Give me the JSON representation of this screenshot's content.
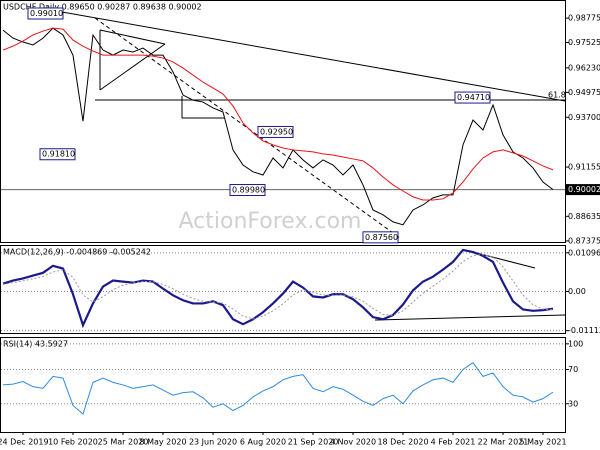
{
  "chart_data": [
    {
      "type": "line",
      "title": "USDCHF,Daily  0.89650 0.90287 0.89638 0.90002",
      "watermark": "ActionForex.com",
      "ylim": [
        0.8727,
        0.997
      ],
      "yticks": [
        0.98775,
        0.97525,
        {
          "value": 0.9623,
          "label": "0.96230"
        },
        0.94975,
        {
          "value": 0.937,
          "label": "0.93700"
        },
        0.91155,
        0.88635,
        0.87375
      ],
      "grid": false,
      "series": [
        {
          "color": "#000000",
          "values": [
            0.9816,
            0.9775,
            0.9755,
            0.974,
            0.9775,
            0.9826,
            0.9791,
            0.9688,
            0.935,
            0.9791,
            0.9714,
            0.9688,
            0.9714,
            0.9704,
            0.9724,
            0.9688,
            0.9688,
            0.9602,
            0.9484,
            0.9458,
            0.9448,
            0.9418,
            0.9397,
            0.9203,
            0.9126,
            0.9091,
            0.9075,
            0.9162,
            0.9111,
            0.9203,
            0.9152,
            0.9111,
            0.9152,
            0.9126,
            0.9075,
            0.9126,
            0.9024,
            0.8896,
            0.8871,
            0.8835,
            0.882,
            0.8896,
            0.8922,
            0.8958,
            0.8973,
            0.8973,
            0.9229,
            0.9356,
            0.9305,
            0.9433,
            0.928,
            0.9193,
            0.9162,
            0.9111,
            0.9039,
            0.90002
          ]
        },
        {
          "color": "#e8141a",
          "values": [
            0.9714,
            0.9734,
            0.976,
            0.9791,
            0.9811,
            0.9826,
            0.9821,
            0.9765,
            0.9734,
            0.9709,
            0.9688,
            0.9688,
            0.9688,
            0.9688,
            0.9688,
            0.9683,
            0.9673,
            0.9653,
            0.9622,
            0.9586,
            0.955,
            0.952,
            0.9489,
            0.9428,
            0.9341,
            0.929,
            0.9249,
            0.9229,
            0.9213,
            0.9203,
            0.9198,
            0.9193,
            0.9183,
            0.9177,
            0.9167,
            0.9157,
            0.9147,
            0.9111,
            0.9065,
            0.9024,
            0.8993,
            0.8963,
            0.8947,
            0.8947,
            0.8953,
            0.8983,
            0.9039,
            0.9106,
            0.9162,
            0.9193,
            0.9203,
            0.9188,
            0.9172,
            0.9147,
            0.9121,
            0.9101
          ]
        }
      ],
      "last_price": 0.90002,
      "fib_level": 61.8,
      "annotations": [
        {
          "value": 0.9901,
          "label": "0.99010"
        },
        {
          "value": 0.9181,
          "label": "0.91810"
        },
        {
          "value": 0.9295,
          "label": "0.92950"
        },
        {
          "value": 0.8998,
          "label": "0.89980"
        },
        {
          "value": 0.9471,
          "label": "0.94710"
        },
        {
          "value": 0.8756,
          "label": "0.87560"
        }
      ]
    },
    {
      "type": "line",
      "title": "MACD(12,26,9) -0.004869 -0.005242",
      "ylim": [
        -0.0118,
        0.0132
      ],
      "yticks": [
        0.010967,
        {
          "value": 0,
          "label": "0.00"
        },
        -0.011127
      ],
      "grid": true,
      "series": [
        {
          "color": "#1a1a8c",
          "values": [
            0.0022,
            0.0031,
            0.0037,
            0.0045,
            0.0053,
            0.0073,
            0.0065,
            -0.0008,
            -0.0096,
            -0.0034,
            0.0014,
            0.0031,
            0.0028,
            0.0025,
            0.0031,
            0.0028,
            0.0008,
            -0.0011,
            -0.0025,
            -0.0034,
            -0.0034,
            -0.0028,
            -0.0039,
            -0.0079,
            -0.0093,
            -0.0079,
            -0.0059,
            -0.0034,
            -0.0006,
            0.0028,
            0.0011,
            -0.0014,
            -0.0017,
            -0.0008,
            -0.0008,
            -0.0022,
            -0.0045,
            -0.0073,
            -0.0079,
            -0.0067,
            -0.0037,
            0.0003,
            0.0028,
            0.0042,
            0.0062,
            0.0084,
            0.0118,
            0.0112,
            0.0101,
            0.0084,
            0.0025,
            -0.0028,
            -0.0051,
            -0.0055,
            -0.0053,
            -0.0049
          ]
        },
        {
          "color": "#9a9a9a",
          "values": [
            0.002,
            0.0025,
            0.003,
            0.0036,
            0.0043,
            0.0055,
            0.0062,
            0.004,
            -0.001,
            -0.003,
            -0.0015,
            0.0005,
            0.0018,
            0.0024,
            0.0028,
            0.0028,
            0.002,
            0.0008,
            -0.0008,
            -0.002,
            -0.0028,
            -0.003,
            -0.0033,
            -0.005,
            -0.007,
            -0.0078,
            -0.007,
            -0.0055,
            -0.0035,
            -0.001,
            0.0005,
            -0.0002,
            -0.001,
            -0.0011,
            -0.001,
            -0.0015,
            -0.0028,
            -0.0048,
            -0.0065,
            -0.0068,
            -0.0055,
            -0.003,
            -0.0005,
            0.0015,
            0.0035,
            0.0058,
            0.0085,
            0.0102,
            0.0105,
            0.0098,
            0.007,
            0.003,
            -0.001,
            -0.0038,
            -0.005,
            -0.0052
          ]
        }
      ]
    },
    {
      "type": "line",
      "title": "RSI(14) 43.5927",
      "ylim": [
        -3,
        108
      ],
      "yticks": [
        100,
        70,
        30
      ],
      "grid": true,
      "categories": [
        null,
        null,
        "24 Dec 2019",
        null,
        null,
        null,
        null,
        "10 Feb 2020",
        null,
        null,
        null,
        null,
        "25 Mar 2020",
        null,
        null,
        null,
        "8 May 2020",
        null,
        null,
        null,
        null,
        "23 Jun 2020",
        null,
        null,
        null,
        null,
        "6 Aug 2020",
        null,
        null,
        null,
        null,
        "21 Sep 2020",
        null,
        null,
        null,
        "4 Nov 2020",
        null,
        null,
        null,
        null,
        "18 Dec 2020",
        null,
        null,
        null,
        null,
        "4 Feb 2021",
        null,
        null,
        null,
        null,
        "22 Mar 2021",
        null,
        null,
        null,
        "5 May 2021",
        null
      ],
      "series": [
        {
          "color": "#2f8ae0",
          "values": [
            52,
            53,
            56,
            50,
            48,
            62,
            60,
            28,
            18,
            55,
            60,
            55,
            52,
            48,
            50,
            52,
            46,
            40,
            43,
            44,
            37,
            26,
            30,
            22,
            28,
            38,
            45,
            50,
            58,
            62,
            64,
            48,
            44,
            50,
            47,
            40,
            33,
            28,
            36,
            40,
            30,
            45,
            52,
            58,
            60,
            55,
            70,
            78,
            62,
            66,
            50,
            40,
            38,
            32,
            36,
            43.5927
          ]
        }
      ]
    }
  ]
}
